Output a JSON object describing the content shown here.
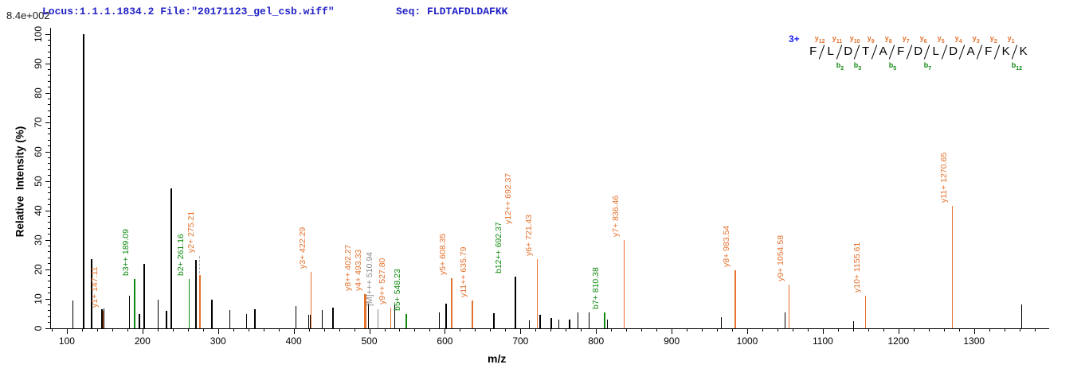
{
  "header": {
    "scale_label": "8.4e+002",
    "locus_file": "Locus:1.1.1.1834.2 File:\"20171123_gel_csb.wiff\"",
    "seq": "Seq: FLDTAFDLDAFKK"
  },
  "axes": {
    "x_label": "m/z",
    "y_label": "Relative  Intensity (%)",
    "x_major_ticks": [
      100,
      200,
      300,
      400,
      500,
      600,
      700,
      800,
      900,
      1000,
      1100,
      1200,
      1300
    ],
    "y_major_ticks": [
      0,
      10,
      20,
      30,
      40,
      50,
      60,
      70,
      80,
      90,
      100
    ]
  },
  "peptide": {
    "charge": "3+",
    "residues": [
      "F",
      "L",
      "D",
      "T",
      "A",
      "F",
      "D",
      "L",
      "D",
      "A",
      "F",
      "K",
      "K"
    ],
    "junctions": [
      {
        "y": 12,
        "b": null
      },
      {
        "y": 11,
        "b": 2
      },
      {
        "y": 10,
        "b": 3
      },
      {
        "y": 9,
        "b": null
      },
      {
        "y": 8,
        "b": 5
      },
      {
        "y": 7,
        "b": null
      },
      {
        "y": 6,
        "b": 7
      },
      {
        "y": 5,
        "b": null
      },
      {
        "y": 4,
        "b": null
      },
      {
        "y": 3,
        "b": null
      },
      {
        "y": 2,
        "b": null
      },
      {
        "y": 1,
        "b": 12
      }
    ]
  },
  "colors": {
    "y_ion": "#e4722e",
    "b_ion": "#0f8a0f",
    "precursor": "#8c8c8c",
    "peak": "#000000",
    "header_text": "#2222c6",
    "charge_text": "#1a1aee"
  },
  "chart_data": {
    "type": "bar",
    "subtype": "centroided MS/MS stick spectrum",
    "xlabel": "m/z",
    "ylabel": "Relative  Intensity (%)",
    "xlim": [
      79,
      1400
    ],
    "ylim": [
      0,
      100
    ],
    "base_peak_intensity": "8.4e+002",
    "peaks": [
      {
        "mz": 107,
        "h": 9.5,
        "c": "k"
      },
      {
        "mz": 121,
        "h": 100,
        "c": "k",
        "w": 2
      },
      {
        "mz": 132,
        "h": 23.5,
        "c": "k"
      },
      {
        "mz": 145.5,
        "h": 6.5,
        "c": "k"
      },
      {
        "mz": 148.5,
        "h": 6.8,
        "c": "k"
      },
      {
        "mz": 147.11,
        "h": 6,
        "c": "y"
      },
      {
        "mz": 182,
        "h": 11.2,
        "c": "k"
      },
      {
        "mz": 189.09,
        "h": 16.8,
        "c": "b"
      },
      {
        "mz": 195,
        "h": 5,
        "c": "k"
      },
      {
        "mz": 201.5,
        "h": 22,
        "c": "k"
      },
      {
        "mz": 220,
        "h": 9.8,
        "c": "k"
      },
      {
        "mz": 231,
        "h": 6,
        "c": "k"
      },
      {
        "mz": 237.5,
        "h": 47.5,
        "c": "k",
        "w": 2
      },
      {
        "mz": 261.16,
        "h": 16.8,
        "c": "b"
      },
      {
        "mz": 270,
        "h": 23.3,
        "c": "k"
      },
      {
        "mz": 275.21,
        "h": 18,
        "c": "y"
      },
      {
        "mz": 291,
        "h": 9.7,
        "c": "k"
      },
      {
        "mz": 315,
        "h": 6.2,
        "c": "k"
      },
      {
        "mz": 337,
        "h": 5,
        "c": "k"
      },
      {
        "mz": 348,
        "h": 6.5,
        "c": "k"
      },
      {
        "mz": 402.3,
        "h": 7.6,
        "c": "k"
      },
      {
        "mz": 419,
        "h": 4.5,
        "c": "k"
      },
      {
        "mz": 421.5,
        "h": 4.5,
        "c": "k"
      },
      {
        "mz": 422.29,
        "h": 19.2,
        "c": "y"
      },
      {
        "mz": 437,
        "h": 6.2,
        "c": "k"
      },
      {
        "mz": 451,
        "h": 6.9,
        "c": "k"
      },
      {
        "mz": 493.33,
        "h": 11.6,
        "c": "y",
        "w": 3
      },
      {
        "mz": 498,
        "h": 8.5,
        "c": "k"
      },
      {
        "mz": 510.94,
        "h": 6.5,
        "c": "m"
      },
      {
        "mz": 527.8,
        "h": 7,
        "c": "y"
      },
      {
        "mz": 533,
        "h": 8,
        "c": "k"
      },
      {
        "mz": 548.23,
        "h": 5,
        "c": "b"
      },
      {
        "mz": 592,
        "h": 5.3,
        "c": "k"
      },
      {
        "mz": 601,
        "h": 8.5,
        "c": "k"
      },
      {
        "mz": 608.35,
        "h": 17,
        "c": "y"
      },
      {
        "mz": 635.79,
        "h": 9.5,
        "c": "y"
      },
      {
        "mz": 664,
        "h": 5.1,
        "c": "k"
      },
      {
        "mz": 692.37,
        "h": 17.5,
        "c": "k",
        "w": 2
      },
      {
        "mz": 711,
        "h": 2.6,
        "c": "k"
      },
      {
        "mz": 721.43,
        "h": 23.5,
        "c": "y"
      },
      {
        "mz": 725,
        "h": 4.5,
        "c": "k"
      },
      {
        "mz": 740,
        "h": 3.5,
        "c": "k"
      },
      {
        "mz": 750,
        "h": 3,
        "c": "k"
      },
      {
        "mz": 764,
        "h": 3,
        "c": "k"
      },
      {
        "mz": 775,
        "h": 5.3,
        "c": "k"
      },
      {
        "mz": 790,
        "h": 5.5,
        "c": "k"
      },
      {
        "mz": 810.38,
        "h": 5.3,
        "c": "b"
      },
      {
        "mz": 814,
        "h": 3,
        "c": "k"
      },
      {
        "mz": 836.46,
        "h": 30,
        "c": "y"
      },
      {
        "mz": 965,
        "h": 3.7,
        "c": "k"
      },
      {
        "mz": 983.54,
        "h": 19.7,
        "c": "y"
      },
      {
        "mz": 1049,
        "h": 5.5,
        "c": "k"
      },
      {
        "mz": 1054.58,
        "h": 15,
        "c": "y"
      },
      {
        "mz": 1140,
        "h": 2.5,
        "c": "k"
      },
      {
        "mz": 1155.61,
        "h": 11,
        "c": "y"
      },
      {
        "mz": 1270.65,
        "h": 41.5,
        "c": "y"
      },
      {
        "mz": 1362,
        "h": 8,
        "c": "k"
      }
    ],
    "labels": [
      {
        "text": "y1+ 147.11",
        "mz": 147.11,
        "h": 6,
        "c": "y"
      },
      {
        "text": "b3++ 189.09",
        "mz": 189.09,
        "h": 16.8,
        "c": "b"
      },
      {
        "text": "b2+ 261.16",
        "mz": 261.16,
        "h": 16.8,
        "c": "b"
      },
      {
        "text": "y2+ 275.21",
        "mz": 275.21,
        "h": 18,
        "c": "y",
        "dy": 24,
        "dash": true
      },
      {
        "text": "y3+ 422.29",
        "mz": 422.29,
        "h": 19.2,
        "c": "y"
      },
      {
        "text": "y8++ 402.27",
        "mz": 493.33,
        "h": 11.6,
        "c": "y",
        "dx": -10
      },
      {
        "text": "y4+ 493.33",
        "mz": 493.33,
        "h": 11.6,
        "c": "y",
        "dx": 3
      },
      {
        "text": "[M]+++ 510.94",
        "mz": 510.94,
        "h": 6.5,
        "c": "m"
      },
      {
        "text": "y9++ 527.80",
        "mz": 527.8,
        "h": 7,
        "c": "y"
      },
      {
        "text": "b5+ 548.23",
        "mz": 548.23,
        "h": 5,
        "c": "b"
      },
      {
        "text": "y5+ 608.35",
        "mz": 608.35,
        "h": 17,
        "c": "y"
      },
      {
        "text": "y11++ 635.79",
        "mz": 635.79,
        "h": 9.5,
        "c": "y"
      },
      {
        "text": "b12++ 692.37",
        "mz": 692.37,
        "h": 17.5,
        "c": "b",
        "dx": -10
      },
      {
        "text": "y12++ 692.37",
        "mz": 692.37,
        "h": 17.5,
        "c": "y",
        "dx": 2,
        "dy": 62
      },
      {
        "text": "y6+ 721.43",
        "mz": 721.43,
        "h": 23.5,
        "c": "y"
      },
      {
        "text": "b7+ 810.38",
        "mz": 810.38,
        "h": 5.3,
        "c": "b"
      },
      {
        "text": "y7+ 836.46",
        "mz": 836.46,
        "h": 30,
        "c": "y"
      },
      {
        "text": "y8+ 983.54",
        "mz": 983.54,
        "h": 19.7,
        "c": "y"
      },
      {
        "text": "y9+ 1054.58",
        "mz": 1054.58,
        "h": 15,
        "c": "y"
      },
      {
        "text": "y10+ 1155.61",
        "mz": 1155.61,
        "h": 11,
        "c": "y"
      },
      {
        "text": "y11+ 1270.65",
        "mz": 1270.65,
        "h": 41.5,
        "c": "y"
      }
    ]
  }
}
